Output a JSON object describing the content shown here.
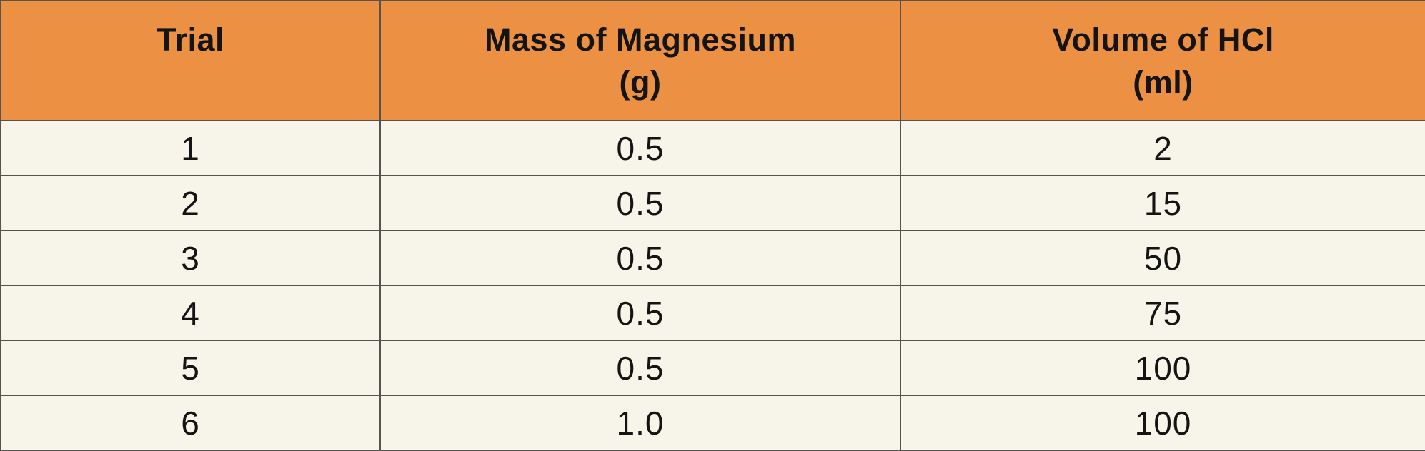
{
  "colors": {
    "header_bg": "#EC9143",
    "row_bg": "#F7F4E9",
    "border": "#55534B",
    "text": "#141414"
  },
  "chart_data": {
    "type": "table",
    "title": "",
    "columns": [
      {
        "label": "Trial",
        "unit": ""
      },
      {
        "label": "Mass of Magnesium",
        "unit": "(g)"
      },
      {
        "label": "Volume of HCl",
        "unit": "(ml)"
      }
    ],
    "rows": [
      [
        "1",
        "0.5",
        "2"
      ],
      [
        "2",
        "0.5",
        "15"
      ],
      [
        "3",
        "0.5",
        "50"
      ],
      [
        "4",
        "0.5",
        "75"
      ],
      [
        "5",
        "0.5",
        "100"
      ],
      [
        "6",
        "1.0",
        "100"
      ]
    ]
  }
}
